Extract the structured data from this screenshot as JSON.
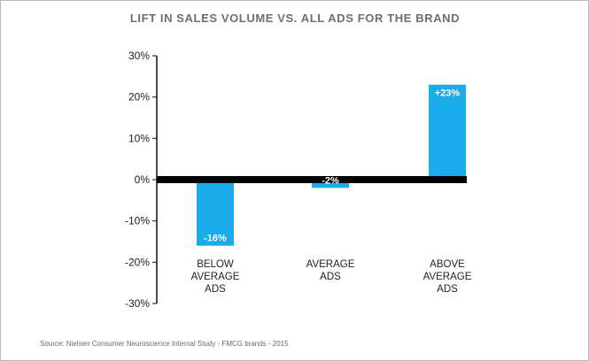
{
  "chart_data": {
    "type": "bar",
    "title": "LIFT IN SALES VOLUME VS. ALL ADS FOR THE BRAND",
    "categories": [
      [
        "BELOW",
        "AVERAGE",
        "ADS"
      ],
      [
        "AVERAGE",
        "ADS"
      ],
      [
        "ABOVE",
        "AVERAGE",
        "ADS"
      ]
    ],
    "values": [
      -16,
      -2,
      23
    ],
    "value_labels": [
      "-16%",
      "-2%",
      "+23%"
    ],
    "ylim": [
      -30,
      30
    ],
    "yticks": [
      30,
      20,
      10,
      0,
      -10,
      -20,
      -30
    ],
    "ytick_labels": [
      "30%",
      "20%",
      "10%",
      "0%",
      "-10%",
      "-20%",
      "-30%"
    ],
    "xlabel": "",
    "ylabel": "",
    "grid": false,
    "legend": "none"
  },
  "colors": {
    "bar": "#1baaea",
    "axis": "#111111",
    "baseline": "#000000"
  },
  "source": "Source: Nielsen Consumer Neuroscience Internal Study - FMCG brands - 2015"
}
